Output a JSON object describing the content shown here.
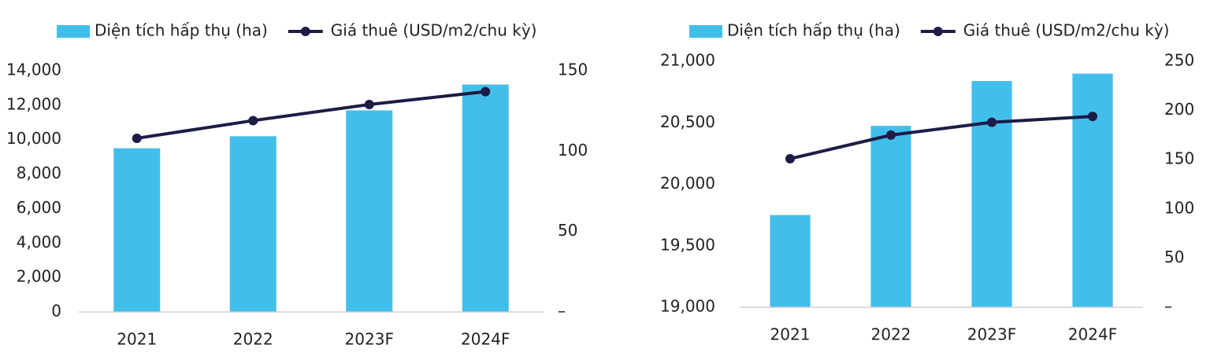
{
  "chart_data": [
    {
      "type": "combo",
      "categories": [
        "2021",
        "2022",
        "2023F",
        "2024F"
      ],
      "series": [
        {
          "name": "Diện tích hấp thụ (ha)",
          "type": "bar",
          "color": "#41bfea",
          "values": [
            9500,
            10200,
            11700,
            13200
          ]
        },
        {
          "name": "Giá thuê (USD/m2/chu kỳ)",
          "type": "line",
          "color": "#1c1c47",
          "axis": "y2",
          "values": [
            108,
            119,
            129,
            137
          ]
        }
      ],
      "ylim": [
        0,
        14000
      ],
      "yticks": [
        0,
        {
          "value": 2000,
          "label": "2,000"
        },
        {
          "value": 4000,
          "label": "4,000"
        },
        {
          "value": 6000,
          "label": "6,000"
        },
        {
          "value": 8000,
          "label": "8,000"
        },
        {
          "value": 10000,
          "label": "10,000"
        },
        {
          "value": 12000,
          "label": "12,000"
        },
        {
          "value": 14000,
          "label": "14,000"
        }
      ],
      "y2lim": [
        0,
        150
      ],
      "y2ticks": [
        {
          "value": 0,
          "label": "–"
        },
        50,
        100,
        150
      ]
    },
    {
      "type": "combo",
      "categories": [
        "2021",
        "2022",
        "2023F",
        "2024F"
      ],
      "series": [
        {
          "name": "Diện tích hấp thụ (ha)",
          "type": "bar",
          "color": "#41bfea",
          "values": [
            19750,
            20475,
            20840,
            20900
          ]
        },
        {
          "name": "Giá thuê (USD/m2/chu kỳ)",
          "type": "line",
          "color": "#1c1c47",
          "axis": "y2",
          "values": [
            151,
            175,
            188,
            194
          ]
        }
      ],
      "ylim": [
        19000,
        21000
      ],
      "yticks": [
        {
          "value": 19000,
          "label": "19,000"
        },
        {
          "value": 19500,
          "label": "19,500"
        },
        {
          "value": 20000,
          "label": "20,000"
        },
        {
          "value": 20500,
          "label": "20,500"
        },
        {
          "value": 21000,
          "label": "21,000"
        }
      ],
      "y2lim": [
        0,
        250
      ],
      "y2ticks": [
        {
          "value": 0,
          "label": "–"
        },
        50,
        100,
        150,
        200,
        250
      ]
    }
  ]
}
